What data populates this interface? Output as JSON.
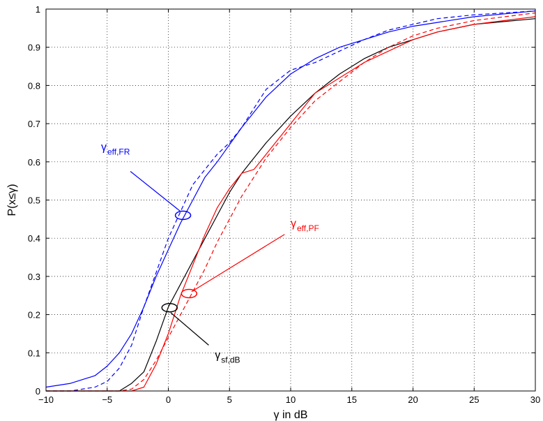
{
  "chart_data": {
    "type": "line",
    "xlabel": "γ in dB",
    "ylabel": "P(x≤γ)",
    "xlim": [
      -10,
      30
    ],
    "ylim": [
      0,
      1
    ],
    "xticks": [
      -10,
      -5,
      0,
      5,
      10,
      15,
      20,
      25,
      30
    ],
    "yticks": [
      0,
      0.1,
      0.2,
      0.3,
      0.4,
      0.5,
      0.6,
      0.7,
      0.8,
      0.9,
      1
    ],
    "grid": true,
    "legend": "none",
    "series": [
      {
        "color": "#0000ff",
        "style": "solid",
        "x": [
          -10,
          -8,
          -6,
          -5,
          -4,
          -3,
          -2,
          -1,
          0,
          1,
          2,
          3,
          4,
          5,
          6,
          7,
          8,
          10,
          12,
          14,
          16,
          18,
          20,
          22,
          25,
          30
        ],
        "y": [
          0.01,
          0.02,
          0.04,
          0.065,
          0.1,
          0.15,
          0.22,
          0.3,
          0.37,
          0.44,
          0.5,
          0.56,
          0.6,
          0.645,
          0.69,
          0.73,
          0.77,
          0.83,
          0.87,
          0.9,
          0.92,
          0.94,
          0.955,
          0.965,
          0.98,
          0.995
        ]
      },
      {
        "color": "#0000ff",
        "style": "dashed",
        "x": [
          -10,
          -8,
          -6,
          -5,
          -4,
          -3,
          -2,
          -1,
          0,
          1,
          2,
          3,
          4,
          5,
          6,
          7,
          8,
          10,
          12,
          14,
          16,
          18,
          20,
          22,
          25,
          30
        ],
        "y": [
          0,
          0,
          0.01,
          0.025,
          0.06,
          0.12,
          0.22,
          0.31,
          0.4,
          0.47,
          0.54,
          0.58,
          0.62,
          0.65,
          0.69,
          0.74,
          0.79,
          0.84,
          0.86,
          0.89,
          0.92,
          0.945,
          0.96,
          0.975,
          0.985,
          0.995
        ]
      },
      {
        "color": "#000000",
        "style": "solid",
        "x": [
          -10,
          -4,
          -3,
          -2,
          -1,
          0,
          1,
          2,
          3,
          4,
          5,
          6,
          7,
          8,
          10,
          12,
          14,
          16,
          18,
          20,
          22,
          25,
          30
        ],
        "y": [
          0,
          0,
          0.02,
          0.05,
          0.13,
          0.22,
          0.28,
          0.34,
          0.4,
          0.46,
          0.52,
          0.57,
          0.61,
          0.65,
          0.72,
          0.78,
          0.83,
          0.87,
          0.9,
          0.92,
          0.94,
          0.96,
          0.975
        ]
      },
      {
        "color": "#ff0000",
        "style": "solid",
        "x": [
          -10,
          -3,
          -2,
          -1,
          0,
          1,
          2,
          3,
          4,
          5,
          6,
          7,
          8,
          10,
          12,
          14,
          16,
          18,
          20,
          22,
          25,
          30
        ],
        "y": [
          0,
          0,
          0.01,
          0.07,
          0.15,
          0.25,
          0.33,
          0.41,
          0.48,
          0.53,
          0.57,
          0.58,
          0.62,
          0.7,
          0.78,
          0.82,
          0.86,
          0.89,
          0.92,
          0.94,
          0.96,
          0.98
        ]
      },
      {
        "color": "#ff0000",
        "style": "dashed",
        "x": [
          -10,
          -4,
          -3,
          -2,
          -1,
          0,
          1,
          2,
          3,
          4,
          5,
          6,
          7,
          8,
          10,
          12,
          14,
          16,
          18,
          20,
          22,
          25,
          30
        ],
        "y": [
          0,
          0,
          0.005,
          0.03,
          0.08,
          0.14,
          0.2,
          0.26,
          0.32,
          0.39,
          0.45,
          0.51,
          0.56,
          0.61,
          0.69,
          0.76,
          0.81,
          0.86,
          0.9,
          0.93,
          0.95,
          0.97,
          0.99
        ]
      }
    ],
    "annotations": [
      {
        "base": "γ",
        "sub": "eff,FR",
        "color": "#0000ff",
        "text_x": -5.5,
        "text_y": 0.63,
        "line_from": [
          -3.1,
          0.575
        ],
        "line_to": [
          1.0,
          0.47
        ],
        "ellipse_at": [
          1.2,
          0.46
        ]
      },
      {
        "base": "γ",
        "sub": "eff,PF",
        "color": "#ff0000",
        "text_x": 10,
        "text_y": 0.43,
        "line_from": [
          9.5,
          0.41
        ],
        "line_to": [
          1.9,
          0.26
        ],
        "ellipse_at": [
          1.7,
          0.255
        ]
      },
      {
        "base": "γ",
        "sub": "sf,dB",
        "color": "#000000",
        "text_x": 3.8,
        "text_y": 0.085,
        "line_from": [
          3.3,
          0.12
        ],
        "line_to": [
          0.2,
          0.205
        ],
        "ellipse_at": [
          0.1,
          0.218
        ]
      }
    ]
  }
}
